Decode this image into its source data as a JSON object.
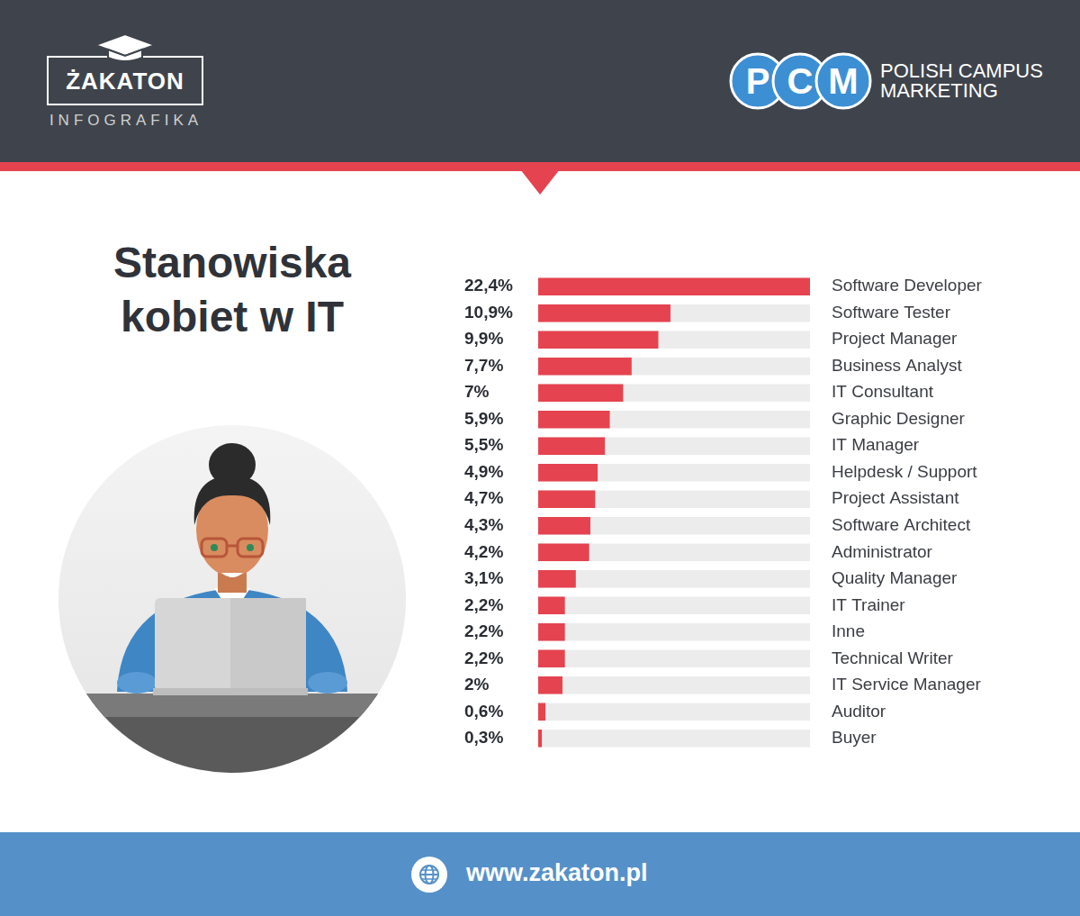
{
  "header": {
    "logo": "ŻAKATON",
    "logo_subtitle": "INFOGRAFIKA",
    "partner_initials": [
      "P",
      "C",
      "M"
    ],
    "partner_name": [
      "POLISH CAMPUS",
      "MARKETING"
    ]
  },
  "chart_data": {
    "type": "bar",
    "orientation": "horizontal",
    "title": "Stanowiska kobiet w IT",
    "categories": [
      "Software Developer",
      "Software Tester",
      "Project Manager",
      "Business Analyst",
      "IT Consultant",
      "Graphic Designer",
      "IT Manager",
      "Helpdesk / Support",
      "Project Assistant",
      "Software Architect",
      "Administrator",
      "Quality Manager",
      "IT Trainer",
      "Inne",
      "Technical Writer",
      "IT Service Manager",
      "Auditor",
      "Buyer"
    ],
    "values": [
      22.4,
      10.9,
      9.9,
      7.7,
      7,
      5.9,
      5.5,
      4.9,
      4.7,
      4.3,
      4.2,
      3.1,
      2.2,
      2.2,
      2.2,
      2,
      0.6,
      0.3
    ],
    "value_labels": [
      "22,4%",
      "10,9%",
      "9,9%",
      "7,7%",
      "7%",
      "5,9%",
      "5,5%",
      "4,9%",
      "4,7%",
      "4,3%",
      "4,2%",
      "3,1%",
      "2,2%",
      "2,2%",
      "2,2%",
      "2%",
      "0,6%",
      "0,3%"
    ],
    "color": "#e5434f",
    "xlim": [
      0,
      22.4
    ],
    "grid": false,
    "data_labels": true,
    "tick_labels": "y"
  },
  "footer": {
    "url": "www.zakaton.pl"
  }
}
